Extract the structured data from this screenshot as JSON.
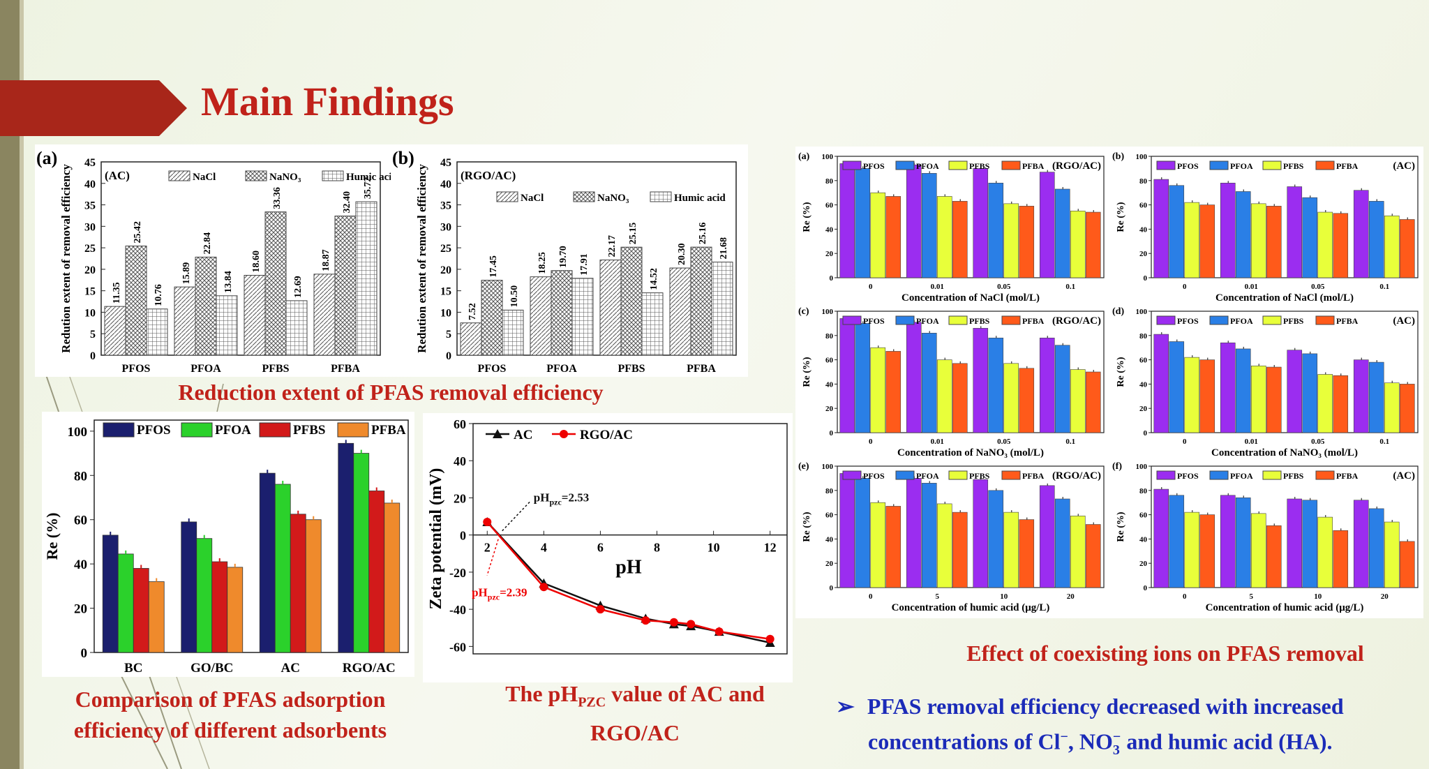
{
  "slide_title": "Main Findings",
  "captions": {
    "reduction": "Reduction extent of PFAS removal efficiency",
    "comparison_line1": "Comparison of PFAS adsorption",
    "comparison_line2": "efficiency of different adsorbents",
    "ph_line1": "The pH",
    "ph_sub": "PZC",
    "ph_line1_rest": " value of AC and",
    "ph_line2": "RGO/AC",
    "coexist": "Effect of coexisting ions on PFAS removal",
    "bullet_symbol": "➢",
    "bullet_line1": "PFAS removal efficiency decreased with increased",
    "bullet_line2a": "concentrations of Cl",
    "bullet_sup1": "−",
    "bullet_line2b": ", NO",
    "bullet_sub": "3",
    "bullet_sup2": "−",
    "bullet_line2c": " and humic acid (HA)."
  },
  "colors": {
    "accent": "#c0221a",
    "blue_text": "#1b2bb8",
    "pfos": "#1b1f6e",
    "pfoa": "#2bd12b",
    "pfbs": "#d21a1a",
    "pfba": "#ef8a2c",
    "purple": "#9b2df0",
    "blue": "#2a7fe6",
    "yellow": "#e8ff3a",
    "orange": "#ff5a1a"
  },
  "chart_data": [
    {
      "id": "reduction_ac",
      "type": "bar",
      "panel": "(a)",
      "label": "(AC)",
      "ylabel": "Redution extent of removal efficiency",
      "ylim": [
        0,
        45
      ],
      "yticks": [
        0,
        5,
        10,
        15,
        20,
        25,
        30,
        35,
        40,
        45
      ],
      "categories": [
        "PFOS",
        "PFOA",
        "PFBS",
        "PFBA"
      ],
      "series": [
        {
          "name": "NaCl",
          "values": [
            11.35,
            15.89,
            18.6,
            18.87
          ],
          "labels": [
            "11.35",
            "15.89",
            "18.60",
            "18.87"
          ]
        },
        {
          "name": "NaNO₃",
          "values": [
            25.42,
            22.84,
            33.36,
            32.4
          ],
          "labels": [
            "25.42",
            "22.84",
            "33.36",
            "32.40"
          ]
        },
        {
          "name": "Humic acid",
          "values": [
            10.76,
            13.84,
            12.69,
            35.72
          ],
          "labels": [
            "10.76",
            "13.84",
            "12.69",
            "35.72"
          ]
        }
      ]
    },
    {
      "id": "reduction_rgoac",
      "type": "bar",
      "panel": "(b)",
      "label": "(RGO/AC)",
      "ylabel": "Redution extent of removal efficiency",
      "ylim": [
        0,
        45
      ],
      "yticks": [
        0,
        5,
        10,
        15,
        20,
        25,
        30,
        35,
        40,
        45
      ],
      "categories": [
        "PFOS",
        "PFOA",
        "PFBS",
        "PFBA"
      ],
      "series": [
        {
          "name": "NaCl",
          "values": [
            7.52,
            18.25,
            22.17,
            20.3
          ],
          "labels": [
            "7.52",
            "18.25",
            "22.17",
            "20.30"
          ]
        },
        {
          "name": "NaNO₃",
          "values": [
            17.45,
            19.7,
            25.15,
            25.16
          ],
          "labels": [
            "17.45",
            "19.70",
            "25.15",
            "25.16"
          ]
        },
        {
          "name": "Humic acid",
          "values": [
            10.5,
            17.91,
            14.52,
            21.68
          ],
          "labels": [
            "10.50",
            "17.91",
            "14.52",
            "21.68"
          ]
        }
      ]
    },
    {
      "id": "adsorbent_comparison",
      "type": "bar",
      "ylabel": "Re (%)",
      "ylim": [
        0,
        105
      ],
      "yticks": [
        0,
        20,
        40,
        60,
        80,
        100
      ],
      "categories": [
        "BC",
        "GO/BC",
        "AC",
        "RGO/AC"
      ],
      "series": [
        {
          "name": "PFOS",
          "values": [
            53,
            59,
            81,
            94.5
          ]
        },
        {
          "name": "PFOA",
          "values": [
            44.5,
            51.5,
            76,
            90
          ]
        },
        {
          "name": "PFBS",
          "values": [
            38,
            41,
            62.5,
            73
          ]
        },
        {
          "name": "PFBA",
          "values": [
            32,
            38.5,
            60,
            67.5
          ]
        }
      ]
    },
    {
      "id": "zeta_potential",
      "type": "line",
      "xlabel": "pH",
      "ylabel": "Zeta potential (mV)",
      "xlim": [
        1.5,
        12.6
      ],
      "ylim": [
        -64,
        60
      ],
      "xticks": [
        2,
        4,
        6,
        8,
        10,
        12
      ],
      "yticks": [
        60,
        40,
        20,
        0,
        -20,
        -40,
        -60
      ],
      "annotations": [
        {
          "text": "pH",
          "sub": "pzc",
          "rest": "=2.53",
          "x": 2.53,
          "y": 0
        },
        {
          "text": "pH",
          "sub": "pzc",
          "rest": "=2.39",
          "x": 2.39,
          "y": 0
        }
      ],
      "series": [
        {
          "name": "AC",
          "marker": "triangle",
          "x": [
            2,
            4,
            6,
            7.6,
            8.6,
            9.2,
            10.2,
            12
          ],
          "y": [
            7,
            -26,
            -38,
            -45,
            -48,
            -49,
            -52,
            -58
          ]
        },
        {
          "name": "RGO/AC",
          "marker": "circle",
          "x": [
            2,
            4,
            6,
            7.6,
            8.6,
            9.2,
            10.2,
            12
          ],
          "y": [
            7,
            -28,
            -40,
            -46,
            -47,
            -48,
            -52,
            -56
          ]
        }
      ]
    },
    {
      "id": "coexist_grid",
      "type": "bar",
      "ylabel": "Re (%)",
      "legend": [
        "PFOS",
        "PFOA",
        "PFBS",
        "PFBA"
      ],
      "ylim": [
        0,
        100
      ],
      "yticks": [
        0,
        20,
        40,
        60,
        80,
        100
      ],
      "panels": [
        {
          "id": "a",
          "panel": "(a)",
          "label": "(RGO/AC)",
          "xlabel": "Concentration of NaCl (mol/L)",
          "categories": [
            "0",
            "0.01",
            "0.05",
            "0.1"
          ],
          "values": [
            [
              94,
              90,
              70,
              67
            ],
            [
              93,
              86,
              67,
              63
            ],
            [
              90,
              78,
              61,
              59
            ],
            [
              87,
              73,
              55,
              54
            ]
          ]
        },
        {
          "id": "b",
          "panel": "(b)",
          "label": "(AC)",
          "xlabel": "Concentration of NaCl (mol/L)",
          "categories": [
            "0",
            "0.01",
            "0.05",
            "0.1"
          ],
          "values": [
            [
              81,
              76,
              62,
              60
            ],
            [
              78,
              71,
              61,
              59
            ],
            [
              75,
              66,
              54,
              53
            ],
            [
              72,
              63,
              51,
              48
            ]
          ]
        },
        {
          "id": "c",
          "panel": "(c)",
          "label": "(RGO/AC)",
          "xlabel": "Concentration of NaNO₃ (mol/L)",
          "categories": [
            "0",
            "0.01",
            "0.05",
            "0.1"
          ],
          "values": [
            [
              94,
              90,
              70,
              67
            ],
            [
              91,
              82,
              60,
              57
            ],
            [
              86,
              78,
              57,
              53
            ],
            [
              78,
              72,
              52,
              50
            ]
          ]
        },
        {
          "id": "d",
          "panel": "(d)",
          "label": "(AC)",
          "xlabel": "Concentration of NaNO₃ (mol/L)",
          "categories": [
            "0",
            "0.01",
            "0.05",
            "0.1"
          ],
          "values": [
            [
              81,
              75,
              62,
              60
            ],
            [
              74,
              69,
              55,
              54
            ],
            [
              68,
              65,
              48,
              47
            ],
            [
              60,
              58,
              41,
              40
            ]
          ]
        },
        {
          "id": "e",
          "panel": "(e)",
          "label": "(RGO/AC)",
          "xlabel": "Concentration of humic acid (μg/L)",
          "categories": [
            "0",
            "5",
            "10",
            "20"
          ],
          "values": [
            [
              94,
              90,
              70,
              67
            ],
            [
              90,
              86,
              69,
              62
            ],
            [
              89,
              80,
              62,
              56
            ],
            [
              84,
              73,
              59,
              52
            ]
          ]
        },
        {
          "id": "f",
          "panel": "(f)",
          "label": "(AC)",
          "xlabel": "Concentration of humic acid (μg/L)",
          "categories": [
            "0",
            "5",
            "10",
            "20"
          ],
          "values": [
            [
              81,
              76,
              62,
              60
            ],
            [
              76,
              74,
              61,
              51
            ],
            [
              73,
              72,
              58,
              47
            ],
            [
              72,
              65,
              54,
              38
            ]
          ]
        }
      ]
    }
  ]
}
